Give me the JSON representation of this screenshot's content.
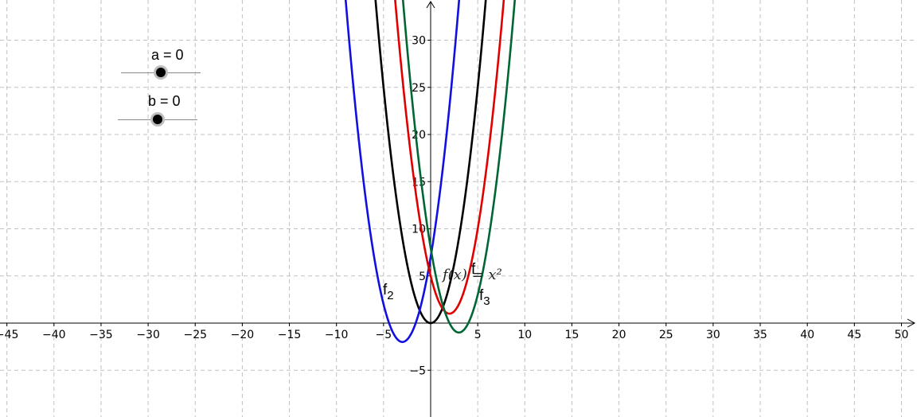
{
  "chart_data": {
    "type": "line",
    "title": "",
    "xlabel": "",
    "ylabel": "",
    "xlim": [
      -46,
      51
    ],
    "ylim": [
      -9.5,
      34.5
    ],
    "grid": true,
    "x_ticks": [
      "−45",
      "−40",
      "−35",
      "−30",
      "−25",
      "−20",
      "−15",
      "−10",
      "−5",
      "5",
      "10",
      "15",
      "20",
      "25",
      "30",
      "35",
      "40",
      "45",
      "50"
    ],
    "x_tick_values": [
      -45,
      -40,
      -35,
      -30,
      -25,
      -20,
      -15,
      -10,
      -5,
      5,
      10,
      15,
      20,
      25,
      30,
      35,
      40,
      45,
      50
    ],
    "y_ticks": [
      "−5",
      "5",
      "10",
      "15",
      "20",
      "25",
      "30"
    ],
    "y_tick_values": [
      -5,
      5,
      10,
      15,
      20,
      25,
      30
    ],
    "series": [
      {
        "label": "",
        "formula": "x^2",
        "vertex": [
          0,
          0
        ],
        "color": "#000000"
      },
      {
        "label": "f2",
        "formula": "(x+3)^2 - 2",
        "vertex": [
          -3,
          -2
        ],
        "color": "#1010e0"
      },
      {
        "label": "",
        "formula": "(x-2)^2 + 1",
        "vertex": [
          2,
          1
        ],
        "color": "#e00000"
      },
      {
        "label": "f3",
        "formula": "(x-3)^2 - 1",
        "vertex": [
          3,
          -1
        ],
        "color": "#006633"
      }
    ],
    "annotation": {
      "text": "f(x) = x²",
      "x": 1.3,
      "y": 5.2,
      "overlay_text": "f"
    }
  },
  "sliders": [
    {
      "label": "a = 0",
      "value": 0
    },
    {
      "label": "b = 0",
      "value": 0
    }
  ]
}
